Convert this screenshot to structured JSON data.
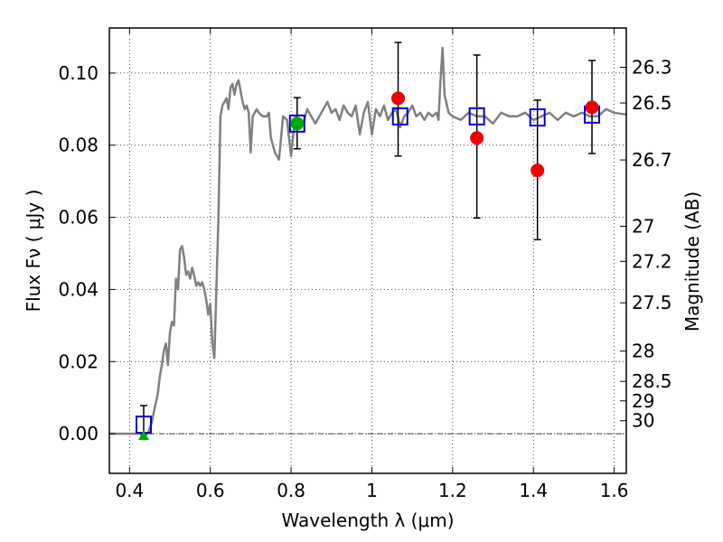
{
  "chart_data": {
    "type": "line",
    "xlabel": "Wavelength  λ (μm)",
    "ylabel": "Flux  Fν  ( μJy )",
    "ylabel_right": "Magnitude (AB)",
    "xlim": [
      0.35,
      1.63
    ],
    "ylim": [
      -0.011,
      0.1125
    ],
    "grid": true,
    "x_ticks": [
      0.4,
      0.6,
      0.8,
      1.0,
      1.2,
      1.4,
      1.6
    ],
    "x_tick_labels": [
      "0.4",
      "0.6",
      "0.8",
      "1",
      "1.2",
      "1.4",
      "1.6"
    ],
    "y_ticks": [
      0.0,
      0.02,
      0.04,
      0.06,
      0.08,
      0.1
    ],
    "y_tick_labels": [
      "0.00",
      "0.02",
      "0.04",
      "0.06",
      "0.08",
      "0.10"
    ],
    "right_ticks": [
      {
        "label": "26.3",
        "flux": 0.1016
      },
      {
        "label": "26.5",
        "flux": 0.0917
      },
      {
        "label": "26.7",
        "flux": 0.0759
      },
      {
        "label": "27",
        "flux": 0.0575
      },
      {
        "label": "27.2",
        "flux": 0.0478
      },
      {
        "label": "27.5",
        "flux": 0.0363
      },
      {
        "label": "28",
        "flux": 0.0229
      },
      {
        "label": "28.5",
        "flux": 0.0145
      },
      {
        "label": "29",
        "flux": 0.0091
      },
      {
        "label": "30",
        "flux": 0.0036
      }
    ],
    "series": [
      {
        "style": "model-spectrum",
        "color": "#808080",
        "x": [
          0.35,
          0.42,
          0.445,
          0.455,
          0.46,
          0.47,
          0.475,
          0.48,
          0.485,
          0.49,
          0.495,
          0.5,
          0.505,
          0.51,
          0.515,
          0.52,
          0.525,
          0.53,
          0.535,
          0.54,
          0.545,
          0.55,
          0.555,
          0.56,
          0.565,
          0.57,
          0.575,
          0.58,
          0.585,
          0.59,
          0.595,
          0.6,
          0.605,
          0.61,
          0.615,
          0.62,
          0.625,
          0.63,
          0.635,
          0.64,
          0.645,
          0.65,
          0.655,
          0.66,
          0.665,
          0.67,
          0.675,
          0.68,
          0.685,
          0.69,
          0.695,
          0.7,
          0.705,
          0.71,
          0.715,
          0.72,
          0.73,
          0.74,
          0.745,
          0.75,
          0.76,
          0.77,
          0.78,
          0.79,
          0.8,
          0.81,
          0.82,
          0.83,
          0.84,
          0.85,
          0.86,
          0.87,
          0.88,
          0.89,
          0.9,
          0.91,
          0.92,
          0.93,
          0.94,
          0.95,
          0.96,
          0.97,
          0.98,
          0.99,
          1.0,
          1.01,
          1.02,
          1.03,
          1.04,
          1.05,
          1.06,
          1.07,
          1.08,
          1.09,
          1.1,
          1.11,
          1.12,
          1.13,
          1.14,
          1.15,
          1.16,
          1.165,
          1.17,
          1.175,
          1.18,
          1.19,
          1.2,
          1.22,
          1.24,
          1.26,
          1.28,
          1.3,
          1.32,
          1.34,
          1.36,
          1.38,
          1.4,
          1.42,
          1.44,
          1.46,
          1.48,
          1.5,
          1.52,
          1.54,
          1.56,
          1.58,
          1.6,
          1.63
        ],
        "y": [
          0.0,
          0.0,
          0.0,
          0.003,
          0.006,
          0.011,
          0.016,
          0.019,
          0.023,
          0.025,
          0.019,
          0.028,
          0.031,
          0.03,
          0.043,
          0.04,
          0.051,
          0.052,
          0.049,
          0.044,
          0.045,
          0.043,
          0.046,
          0.044,
          0.041,
          0.042,
          0.041,
          0.042,
          0.04,
          0.037,
          0.033,
          0.036,
          0.025,
          0.021,
          0.04,
          0.06,
          0.088,
          0.091,
          0.092,
          0.093,
          0.09,
          0.096,
          0.097,
          0.094,
          0.097,
          0.098,
          0.095,
          0.092,
          0.09,
          0.091,
          0.089,
          0.078,
          0.088,
          0.089,
          0.09,
          0.089,
          0.088,
          0.088,
          0.089,
          0.082,
          0.078,
          0.076,
          0.088,
          0.087,
          0.077,
          0.088,
          0.087,
          0.086,
          0.09,
          0.088,
          0.086,
          0.088,
          0.09,
          0.092,
          0.089,
          0.09,
          0.087,
          0.091,
          0.089,
          0.088,
          0.091,
          0.083,
          0.089,
          0.092,
          0.083,
          0.09,
          0.088,
          0.091,
          0.087,
          0.089,
          0.09,
          0.085,
          0.088,
          0.089,
          0.091,
          0.088,
          0.089,
          0.087,
          0.089,
          0.088,
          0.089,
          0.087,
          0.098,
          0.107,
          0.094,
          0.089,
          0.088,
          0.087,
          0.089,
          0.088,
          0.088,
          0.086,
          0.089,
          0.088,
          0.088,
          0.089,
          0.087,
          0.088,
          0.089,
          0.087,
          0.089,
          0.088,
          0.089,
          0.088,
          0.088,
          0.09,
          0.089,
          0.0885
        ]
      },
      {
        "style": "model-photometry",
        "marker": "open-square",
        "color": "#0000cc",
        "x": [
          0.435,
          0.815,
          1.07,
          1.26,
          1.41,
          1.545
        ],
        "y": [
          0.0025,
          0.086,
          0.088,
          0.088,
          0.0877,
          0.0885
        ]
      },
      {
        "style": "observed-flux",
        "marker": "filled-circle",
        "color": "#ee0000",
        "x": [
          1.065,
          1.26,
          1.41,
          1.545
        ],
        "y": [
          0.093,
          0.082,
          0.073,
          0.0905
        ],
        "err_low": [
          0.077,
          0.0598,
          0.0538,
          0.0777
        ],
        "err_high": [
          0.1085,
          0.105,
          0.0925,
          0.1035
        ]
      },
      {
        "style": "observed-flux-other",
        "marker": "filled-circle",
        "color": "#00aa00",
        "x": [
          0.815
        ],
        "y": [
          0.086
        ],
        "err_low": [
          0.079
        ],
        "err_high": [
          0.0932
        ]
      },
      {
        "style": "upper-limit",
        "marker": "triangle",
        "color": "#00aa00",
        "x": [
          0.435
        ],
        "y": [
          -0.0005
        ],
        "err_low": [
          0.0
        ],
        "err_high": [
          0.0078
        ]
      }
    ]
  }
}
